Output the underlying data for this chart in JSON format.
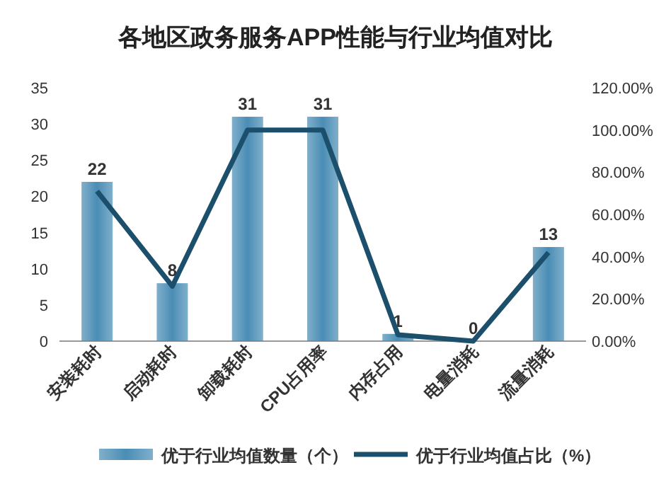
{
  "chart_data": {
    "type": "bar",
    "title": "各地区政务服务APP性能与行业均值对比",
    "categories": [
      "安装耗时",
      "启动耗时",
      "卸载耗时",
      "CPU占用率",
      "内存占用",
      "电量消耗",
      "流量消耗"
    ],
    "series": [
      {
        "name": "优于行业均值数量（个）",
        "color": "#4a8db5",
        "values": [
          22,
          8,
          31,
          31,
          1,
          0,
          13
        ],
        "value_labels": [
          "22",
          "8",
          "31",
          "31",
          "1",
          "0",
          "13"
        ]
      },
      {
        "name": "优于行业均值占比（%）",
        "type": "line",
        "axis": "y2",
        "color": "#1b4f6b",
        "values": [
          71,
          26,
          100,
          100,
          3,
          0,
          42
        ]
      }
    ],
    "ylim": [
      0,
      35
    ],
    "yticks": [
      0,
      5,
      10,
      15,
      20,
      25,
      30,
      35
    ],
    "y2lim": [
      0,
      120
    ],
    "y2ticks": [
      {
        "value": 0,
        "label": "0.00%"
      },
      {
        "value": 20,
        "label": "20.00%"
      },
      {
        "value": 40,
        "label": "40.00%"
      },
      {
        "value": 60,
        "label": "60.00%"
      },
      {
        "value": 80,
        "label": "80.00%"
      },
      {
        "value": 100,
        "label": "100.00%"
      },
      {
        "value": 120,
        "label": "120.00%"
      }
    ],
    "grid": false,
    "legend": "bottom",
    "marker": "none",
    "line_style": "solid"
  }
}
